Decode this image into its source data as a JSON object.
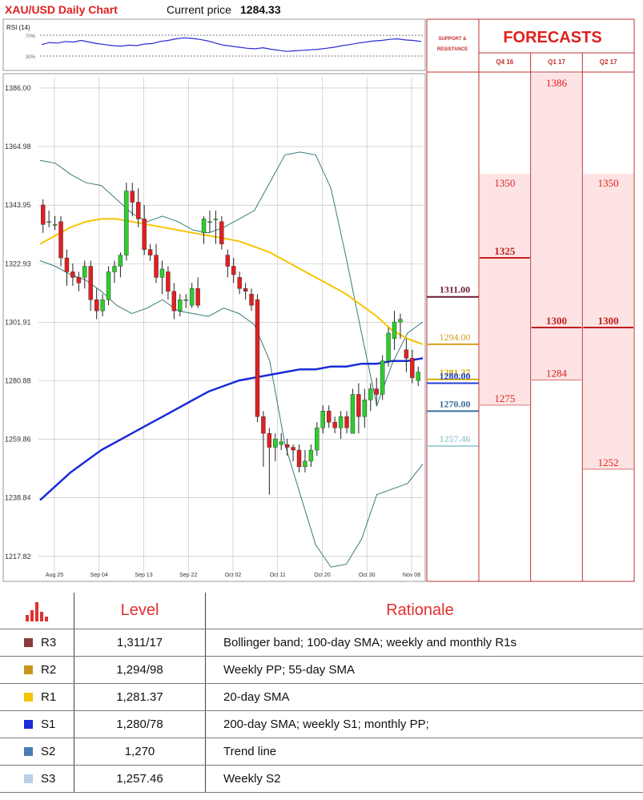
{
  "header": {
    "title": "XAU/USD Daily Chart",
    "price_label": "Current price",
    "price_value": "1284.33"
  },
  "rsi": {
    "label": "RSI (14)",
    "upper": "70%",
    "lower": "30%",
    "values": [
      52,
      56,
      55,
      58,
      57,
      60,
      57,
      54,
      52,
      50,
      49,
      51,
      50,
      53,
      54,
      58,
      60,
      63,
      65,
      64,
      62,
      59,
      55,
      51,
      49,
      47,
      45,
      44,
      46,
      43,
      41,
      39,
      40,
      41,
      42,
      43,
      45,
      47,
      50,
      52,
      55,
      57,
      59,
      60,
      62,
      63,
      61,
      60,
      58
    ]
  },
  "chart_data": {
    "type": "candlestick",
    "title": "XAU/USD Daily Chart",
    "ylim": [
      1210,
      1390
    ],
    "y_ticks": [
      "1386.00",
      "1364.98",
      "1343.95",
      "1322.93",
      "1301.91",
      "1280.88",
      "1259.86",
      "1238.84",
      "1217.82"
    ],
    "x_ticks": [
      "Aug 25",
      "Sep 04",
      "Sep 13",
      "Sep 22",
      "Oct 02",
      "Oct 11",
      "Oct 20",
      "Oct 30",
      "Nov 08"
    ],
    "candles": [
      [
        1344,
        1346,
        1334,
        1337
      ],
      [
        1338,
        1342,
        1336,
        1338
      ],
      [
        1337,
        1340,
        1335,
        1337
      ],
      [
        1338,
        1340,
        1322,
        1325
      ],
      [
        1325,
        1328,
        1315,
        1320
      ],
      [
        1320,
        1323,
        1315,
        1318
      ],
      [
        1318,
        1320,
        1313,
        1316
      ],
      [
        1318,
        1324,
        1314,
        1322
      ],
      [
        1322,
        1324,
        1306,
        1310
      ],
      [
        1310,
        1314,
        1303,
        1306
      ],
      [
        1306,
        1312,
        1304,
        1310
      ],
      [
        1310,
        1322,
        1308,
        1320
      ],
      [
        1320,
        1324,
        1316,
        1322
      ],
      [
        1322,
        1327,
        1318,
        1326
      ],
      [
        1326,
        1352,
        1324,
        1349
      ],
      [
        1349,
        1352,
        1340,
        1345
      ],
      [
        1345,
        1350,
        1336,
        1339
      ],
      [
        1339,
        1344,
        1326,
        1328
      ],
      [
        1328,
        1330,
        1324,
        1326
      ],
      [
        1326,
        1330,
        1316,
        1318
      ],
      [
        1318,
        1324,
        1312,
        1321
      ],
      [
        1320,
        1322,
        1310,
        1313
      ],
      [
        1313,
        1316,
        1303,
        1306
      ],
      [
        1306,
        1312,
        1304,
        1310
      ],
      [
        1310,
        1312,
        1307,
        1310
      ],
      [
        1308,
        1316,
        1307,
        1314
      ],
      [
        1314,
        1318,
        1307,
        1308
      ],
      [
        1334,
        1340,
        1330,
        1339
      ],
      [
        1338,
        1342,
        1334,
        1338
      ],
      [
        1339,
        1342,
        1330,
        1339
      ],
      [
        1338,
        1340,
        1328,
        1330
      ],
      [
        1326,
        1328,
        1318,
        1322
      ],
      [
        1322,
        1325,
        1316,
        1319
      ],
      [
        1318,
        1320,
        1312,
        1314
      ],
      [
        1314,
        1316,
        1310,
        1313
      ],
      [
        1312,
        1314,
        1306,
        1308
      ],
      [
        1310,
        1312,
        1266,
        1268
      ],
      [
        1268,
        1270,
        1250,
        1262
      ],
      [
        1262,
        1264,
        1240,
        1257
      ],
      [
        1257,
        1262,
        1252,
        1260
      ],
      [
        1258,
        1262,
        1256,
        1259
      ],
      [
        1258,
        1260,
        1254,
        1257
      ],
      [
        1257,
        1258,
        1252,
        1256
      ],
      [
        1256,
        1258,
        1248,
        1250
      ],
      [
        1250,
        1256,
        1248,
        1252
      ],
      [
        1252,
        1258,
        1250,
        1256
      ],
      [
        1256,
        1266,
        1254,
        1264
      ],
      [
        1264,
        1272,
        1262,
        1270
      ],
      [
        1270,
        1272,
        1264,
        1266
      ],
      [
        1266,
        1268,
        1262,
        1264
      ],
      [
        1264,
        1270,
        1260,
        1268
      ],
      [
        1268,
        1270,
        1262,
        1264
      ],
      [
        1262,
        1278,
        1262,
        1276
      ],
      [
        1276,
        1280,
        1262,
        1268
      ],
      [
        1268,
        1278,
        1264,
        1274
      ],
      [
        1274,
        1280,
        1270,
        1278
      ],
      [
        1278,
        1282,
        1272,
        1276
      ],
      [
        1276,
        1290,
        1274,
        1288
      ],
      [
        1288,
        1300,
        1286,
        1298
      ],
      [
        1296,
        1306,
        1292,
        1302
      ],
      [
        1302,
        1305,
        1296,
        1303
      ],
      [
        1292,
        1296,
        1284,
        1289
      ],
      [
        1289,
        1292,
        1280,
        1282
      ],
      [
        1281,
        1286,
        1279,
        1284
      ]
    ],
    "sma20": [
      1330,
      1333,
      1336,
      1338,
      1339,
      1339,
      1338,
      1337,
      1336,
      1335,
      1334,
      1333,
      1332,
      1331,
      1329,
      1327,
      1324,
      1321,
      1318,
      1315,
      1312,
      1308,
      1304,
      1299,
      1296,
      1294
    ],
    "sma200": [
      1238,
      1243,
      1248,
      1252,
      1256,
      1259,
      1262,
      1265,
      1268,
      1271,
      1274,
      1277,
      1279,
      1281,
      1282,
      1283,
      1284,
      1285,
      1285,
      1286,
      1286,
      1287,
      1287,
      1288,
      1288,
      1289
    ],
    "bb_upper": [
      1360,
      1359,
      1355,
      1352,
      1351,
      1346,
      1341,
      1338,
      1340,
      1338,
      1335,
      1334,
      1336,
      1339,
      1342,
      1352,
      1362,
      1363,
      1362,
      1350,
      1325,
      1298,
      1272,
      1287,
      1298,
      1302
    ],
    "bb_lower": [
      1324,
      1322,
      1319,
      1317,
      1313,
      1308,
      1305,
      1307,
      1310,
      1306,
      1305,
      1304,
      1307,
      1305,
      1301,
      1288,
      1258,
      1240,
      1222,
      1214,
      1215,
      1224,
      1240,
      1242,
      1244,
      1251
    ]
  },
  "sr": {
    "header": "SUPPORT & RESISTANCE",
    "levels": [
      {
        "label": "1311.00",
        "color": "#6b1c2e",
        "bold": true
      },
      {
        "label": "1294.00",
        "color": "#d4a020",
        "bold": false
      },
      {
        "label": "1281.37",
        "color": "#d4b000",
        "bold": true
      },
      {
        "label": "1280.00",
        "color": "#1f3fd8",
        "bold": true
      },
      {
        "label": "1270.00",
        "color": "#3a6e95",
        "bold": true
      },
      {
        "label": "1257.46",
        "color": "#a8cfd8",
        "bold": true
      }
    ]
  },
  "forecasts": {
    "title": "FORECASTS",
    "columns": [
      {
        "name": "Q4 16",
        "low": "1275",
        "mid": "1325",
        "high": "1350"
      },
      {
        "name": "Q1 17",
        "low": "1284",
        "mid": "1300",
        "high": "1386"
      },
      {
        "name": "Q2 17",
        "low": "1252",
        "mid": "1300",
        "high": "1350"
      }
    ]
  },
  "table": {
    "headers": {
      "level": "Level",
      "rationale": "Rationale"
    },
    "rows": [
      {
        "name": "R3",
        "color": "#8b3a3a",
        "level": "1,311/17",
        "rationale": "Bollinger band; 100-day SMA; weekly and monthly R1s"
      },
      {
        "name": "R2",
        "color": "#c8961a",
        "level": "1,294/98",
        "rationale": "Weekly PP; 55-day SMA"
      },
      {
        "name": "R1",
        "color": "#f5c400",
        "level": "1,281.37",
        "rationale": "20-day SMA"
      },
      {
        "name": "S1",
        "color": "#1a2bd8",
        "level": "1,280/78",
        "rationale": "200-day SMA; weekly S1;  monthly PP;"
      },
      {
        "name": "S2",
        "color": "#4a7db5",
        "level": "1,270",
        "rationale": "Trend line"
      },
      {
        "name": "S3",
        "color": "#b8d0e6",
        "level": "1,257.46",
        "rationale": "Weekly S2"
      }
    ]
  }
}
